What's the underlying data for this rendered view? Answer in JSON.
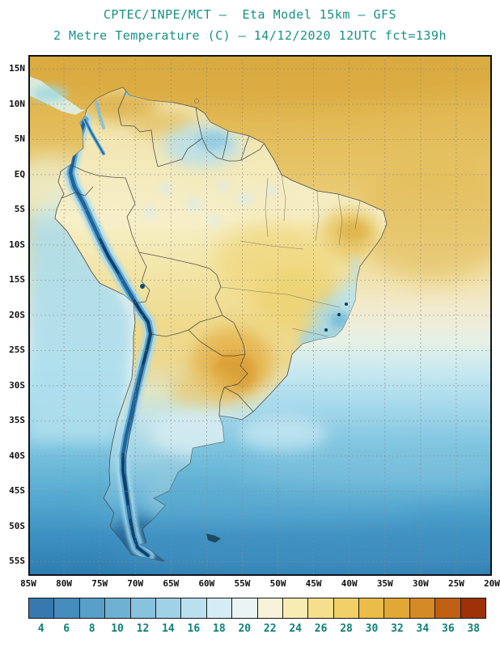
{
  "header": {
    "line1": "CPTEC/INPE/MCT —  Eta Model 15km — GFS",
    "line2": "2 Metre Temperature (C) — 14/12/2020 12UTC fct=139h"
  },
  "axes": {
    "lat_ticks": [
      {
        "label": "15N",
        "deg": 15
      },
      {
        "label": "10N",
        "deg": 10
      },
      {
        "label": "5N",
        "deg": 5
      },
      {
        "label": "EQ",
        "deg": 0
      },
      {
        "label": "5S",
        "deg": -5
      },
      {
        "label": "10S",
        "deg": -10
      },
      {
        "label": "15S",
        "deg": -15
      },
      {
        "label": "20S",
        "deg": -20
      },
      {
        "label": "25S",
        "deg": -25
      },
      {
        "label": "30S",
        "deg": -30
      },
      {
        "label": "35S",
        "deg": -35
      },
      {
        "label": "40S",
        "deg": -40
      },
      {
        "label": "45S",
        "deg": -45
      },
      {
        "label": "50S",
        "deg": -50
      },
      {
        "label": "55S",
        "deg": -55
      }
    ],
    "lon_ticks": [
      {
        "label": "85W",
        "deg": -85
      },
      {
        "label": "80W",
        "deg": -80
      },
      {
        "label": "75W",
        "deg": -75
      },
      {
        "label": "70W",
        "deg": -70
      },
      {
        "label": "65W",
        "deg": -65
      },
      {
        "label": "60W",
        "deg": -60
      },
      {
        "label": "55W",
        "deg": -55
      },
      {
        "label": "50W",
        "deg": -50
      },
      {
        "label": "45W",
        "deg": -45
      },
      {
        "label": "40W",
        "deg": -40
      },
      {
        "label": "35W",
        "deg": -35
      },
      {
        "label": "30W",
        "deg": -30
      },
      {
        "label": "25W",
        "deg": -25
      },
      {
        "label": "20W",
        "deg": -20
      }
    ]
  },
  "colorbar": {
    "values": [
      "4",
      "6",
      "8",
      "10",
      "12",
      "14",
      "16",
      "18",
      "20",
      "22",
      "24",
      "26",
      "28",
      "30",
      "32",
      "34",
      "36",
      "38"
    ],
    "colors": [
      "#3579ae",
      "#468cbc",
      "#589fc9",
      "#6fb1d3",
      "#88c2de",
      "#a0d2e7",
      "#bae0ef",
      "#d3ecf5",
      "#e9f4f3",
      "#f7f3d8",
      "#f8ecb2",
      "#f5df8d",
      "#f0d067",
      "#eabd49",
      "#e1a737",
      "#d48a26",
      "#bf6014",
      "#9d3208"
    ]
  },
  "theme": {
    "title_color": "#169184",
    "axis_label_color": "#101010",
    "colorbar_label_color": "#0f8176",
    "frame_color": "#10141c"
  },
  "map_palette": {
    "ocean_warm": "#e0b44c",
    "ocean_cold": "#2e7cb0",
    "land_warm_cream": "#f6efc9",
    "andes_cold_core": "#0b3e6b",
    "hot_region_orange": "#d99c33"
  }
}
